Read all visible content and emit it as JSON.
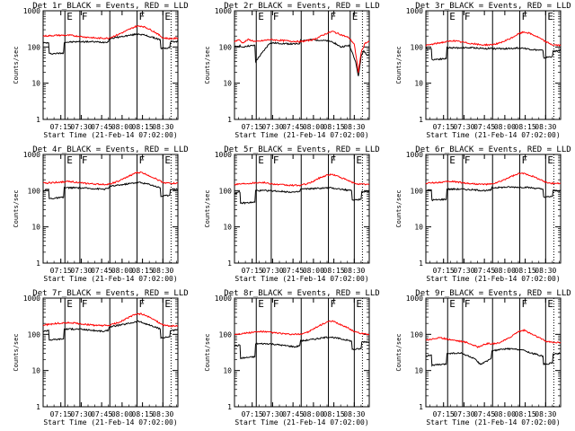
{
  "page": {
    "background": "#ffffff"
  },
  "colors": {
    "events": "#000000",
    "lld": "#ff0000",
    "axis": "#000000"
  },
  "shared": {
    "ylabel": "Counts/sec",
    "xlabel": "Start Time (21-Feb-14 07:02:00)",
    "x_tick_labels": [
      "07:15",
      "07:30",
      "07:45",
      "08:00",
      "08:15",
      "08:30"
    ],
    "y_tick_labels": [
      "1",
      "10",
      "100",
      "1000"
    ]
  },
  "chart_data": [
    {
      "type": "line",
      "title": "Det 1r_BLACK = Events, RED = LLD",
      "xlabel": "Start Time (21-Feb-14 07:02:00)",
      "ylabel": "Counts/sec",
      "x_unit": "minutes since 07:02:00",
      "xlim": [
        0,
        99
      ],
      "ylim": [
        1,
        1000
      ],
      "y_scale": "log",
      "markers": [
        {
          "x": 16,
          "label": "E"
        },
        {
          "x": 27,
          "label": "F"
        },
        {
          "x": 49,
          "label": ""
        },
        {
          "x": 69,
          "label": "F"
        },
        {
          "x": 88,
          "label": "E"
        },
        {
          "x": 94,
          "label": ""
        }
      ],
      "series": [
        {
          "name": "Events",
          "color": "#000000",
          "x": [
            0,
            4,
            4.5,
            15,
            15.5,
            26,
            26.5,
            35,
            45,
            48,
            48.5,
            60,
            70,
            75,
            86,
            86.5,
            93,
            93.5,
            99
          ],
          "y": [
            130,
            130,
            65,
            68,
            135,
            140,
            140,
            140,
            135,
            140,
            170,
            200,
            230,
            210,
            160,
            90,
            95,
            140,
            140
          ]
        },
        {
          "name": "LLD",
          "color": "#ff0000",
          "x": [
            0,
            10,
            20,
            30,
            40,
            48,
            55,
            62,
            68,
            72,
            76,
            82,
            88,
            93,
            99
          ],
          "y": [
            200,
            210,
            210,
            190,
            175,
            175,
            220,
            290,
            370,
            380,
            340,
            260,
            180,
            170,
            175
          ]
        }
      ]
    },
    {
      "type": "line",
      "title": "Det 2r_BLACK = Events, RED = LLD",
      "xlabel": "Start Time (21-Feb-14 07:02:00)",
      "ylabel": "Counts/sec",
      "x_unit": "minutes since 07:02:00",
      "xlim": [
        0,
        99
      ],
      "ylim": [
        1,
        1000
      ],
      "y_scale": "log",
      "markers": [
        {
          "x": 16,
          "label": "E"
        },
        {
          "x": 27,
          "label": "F"
        },
        {
          "x": 49,
          "label": ""
        },
        {
          "x": 69,
          "label": "F"
        },
        {
          "x": 85,
          "label": "E"
        },
        {
          "x": 94,
          "label": ""
        }
      ],
      "series": [
        {
          "name": "Events",
          "color": "#000000",
          "x": [
            0,
            4,
            6,
            8,
            15,
            15.5,
            26,
            35,
            45,
            48,
            48.5,
            58,
            66,
            72,
            78,
            84,
            86,
            89,
            91,
            93,
            95,
            97,
            99
          ],
          "y": [
            100,
            110,
            95,
            105,
            110,
            40,
            130,
            125,
            120,
            125,
            150,
            160,
            150,
            140,
            100,
            110,
            80,
            40,
            15,
            55,
            80,
            60,
            60
          ]
        },
        {
          "name": "LLD",
          "color": "#ff0000",
          "x": [
            0,
            3,
            6,
            10,
            16,
            26,
            36,
            48,
            58,
            68,
            72,
            78,
            84,
            88,
            91,
            93,
            96,
            99
          ],
          "y": [
            140,
            160,
            130,
            160,
            140,
            160,
            150,
            140,
            160,
            240,
            270,
            220,
            180,
            120,
            20,
            70,
            130,
            140
          ]
        }
      ]
    },
    {
      "type": "line",
      "title": "Det 3r_BLACK = Events, RED = LLD",
      "xlabel": "Start Time (21-Feb-14 07:02:00)",
      "ylabel": "Counts/sec",
      "x_unit": "minutes since 07:02:00",
      "xlim": [
        0,
        99
      ],
      "ylim": [
        1,
        1000
      ],
      "y_scale": "log",
      "markers": [
        {
          "x": 16,
          "label": "E"
        },
        {
          "x": 27,
          "label": "F"
        },
        {
          "x": 49,
          "label": ""
        },
        {
          "x": 69,
          "label": "F"
        },
        {
          "x": 88,
          "label": "E"
        },
        {
          "x": 94,
          "label": ""
        }
      ],
      "series": [
        {
          "name": "Events",
          "color": "#000000",
          "x": [
            0,
            4,
            4.5,
            15,
            15.5,
            26,
            35,
            45,
            48,
            48.5,
            60,
            70,
            78,
            86,
            86.5,
            93,
            93.5,
            99
          ],
          "y": [
            90,
            90,
            45,
            48,
            95,
            95,
            95,
            90,
            95,
            90,
            90,
            95,
            85,
            80,
            50,
            55,
            75,
            80
          ]
        },
        {
          "name": "LLD",
          "color": "#ff0000",
          "x": [
            0,
            10,
            20,
            30,
            40,
            48,
            55,
            62,
            68,
            72,
            76,
            82,
            88,
            93,
            99
          ],
          "y": [
            110,
            130,
            150,
            130,
            115,
            115,
            130,
            170,
            230,
            260,
            240,
            190,
            140,
            115,
            110
          ]
        }
      ]
    },
    {
      "type": "line",
      "title": "Det 4r_BLACK = Events, RED = LLD",
      "xlabel": "Start Time (21-Feb-14 07:02:00)",
      "ylabel": "Counts/sec",
      "x_unit": "minutes since 07:02:00",
      "xlim": [
        0,
        99
      ],
      "ylim": [
        1,
        1000
      ],
      "y_scale": "log",
      "markers": [
        {
          "x": 16,
          "label": "E"
        },
        {
          "x": 27,
          "label": "F"
        },
        {
          "x": 49,
          "label": ""
        },
        {
          "x": 69,
          "label": "F"
        },
        {
          "x": 88,
          "label": "E"
        },
        {
          "x": 94,
          "label": ""
        }
      ],
      "series": [
        {
          "name": "Events",
          "color": "#000000",
          "x": [
            0,
            4,
            4.5,
            15,
            15.5,
            26,
            35,
            45,
            48,
            48.5,
            60,
            70,
            78,
            86,
            86.5,
            93,
            93.5,
            99
          ],
          "y": [
            100,
            110,
            60,
            65,
            120,
            120,
            115,
            110,
            115,
            130,
            150,
            170,
            150,
            120,
            70,
            75,
            110,
            110
          ]
        },
        {
          "name": "LLD",
          "color": "#ff0000",
          "x": [
            0,
            10,
            20,
            30,
            40,
            48,
            55,
            62,
            68,
            72,
            76,
            82,
            88,
            93,
            99
          ],
          "y": [
            160,
            170,
            180,
            160,
            150,
            150,
            180,
            240,
            310,
            320,
            280,
            220,
            170,
            160,
            160
          ]
        }
      ]
    },
    {
      "type": "line",
      "title": "Det 5r_BLACK = Events, RED = LLD",
      "xlabel": "Start Time (21-Feb-14 07:02:00)",
      "ylabel": "Counts/sec",
      "x_unit": "minutes since 07:02:00",
      "xlim": [
        0,
        99
      ],
      "ylim": [
        1,
        1000
      ],
      "y_scale": "log",
      "markers": [
        {
          "x": 16,
          "label": "E"
        },
        {
          "x": 27,
          "label": "F"
        },
        {
          "x": 49,
          "label": ""
        },
        {
          "x": 69,
          "label": "F"
        },
        {
          "x": 88,
          "label": "E"
        },
        {
          "x": 94,
          "label": ""
        }
      ],
      "series": [
        {
          "name": "Events",
          "color": "#000000",
          "x": [
            0,
            4,
            4.5,
            15,
            15.5,
            26,
            35,
            45,
            48,
            48.5,
            60,
            70,
            78,
            86,
            86.5,
            93,
            93.5,
            99
          ],
          "y": [
            85,
            90,
            45,
            48,
            100,
            100,
            95,
            90,
            95,
            110,
            115,
            120,
            110,
            100,
            55,
            58,
            95,
            95
          ]
        },
        {
          "name": "LLD",
          "color": "#ff0000",
          "x": [
            0,
            10,
            20,
            30,
            40,
            48,
            55,
            62,
            68,
            72,
            76,
            82,
            88,
            93,
            99
          ],
          "y": [
            150,
            160,
            170,
            150,
            140,
            140,
            160,
            220,
            270,
            280,
            250,
            200,
            160,
            150,
            150
          ]
        }
      ]
    },
    {
      "type": "line",
      "title": "Det 6r_BLACK = Events, RED = LLD",
      "xlabel": "Start Time (21-Feb-14 07:02:00)",
      "ylabel": "Counts/sec",
      "x_unit": "minutes since 07:02:00",
      "xlim": [
        0,
        99
      ],
      "ylim": [
        1,
        1000
      ],
      "y_scale": "log",
      "markers": [
        {
          "x": 16,
          "label": "E"
        },
        {
          "x": 27,
          "label": "F"
        },
        {
          "x": 49,
          "label": ""
        },
        {
          "x": 69,
          "label": "F"
        },
        {
          "x": 88,
          "label": "E"
        },
        {
          "x": 94,
          "label": ""
        }
      ],
      "series": [
        {
          "name": "Events",
          "color": "#000000",
          "x": [
            0,
            4,
            4.5,
            15,
            15.5,
            26,
            35,
            45,
            48,
            48.5,
            60,
            70,
            78,
            86,
            86.5,
            93,
            93.5,
            99
          ],
          "y": [
            100,
            105,
            55,
            58,
            110,
            110,
            105,
            100,
            105,
            120,
            125,
            125,
            120,
            110,
            65,
            70,
            100,
            100
          ]
        },
        {
          "name": "LLD",
          "color": "#ff0000",
          "x": [
            0,
            10,
            20,
            30,
            40,
            48,
            55,
            62,
            68,
            72,
            76,
            82,
            88,
            93,
            99
          ],
          "y": [
            160,
            170,
            180,
            160,
            150,
            150,
            180,
            240,
            290,
            300,
            270,
            220,
            170,
            160,
            160
          ]
        }
      ]
    },
    {
      "type": "line",
      "title": "Det 7r_BLACK = Events, RED = LLD",
      "xlabel": "Start Time (21-Feb-14 07:02:00)",
      "ylabel": "Counts/sec",
      "x_unit": "minutes since 07:02:00",
      "xlim": [
        0,
        99
      ],
      "ylim": [
        1,
        1000
      ],
      "y_scale": "log",
      "markers": [
        {
          "x": 16,
          "label": "E"
        },
        {
          "x": 27,
          "label": "F"
        },
        {
          "x": 49,
          "label": ""
        },
        {
          "x": 69,
          "label": "F"
        },
        {
          "x": 88,
          "label": "E"
        },
        {
          "x": 94,
          "label": ""
        }
      ],
      "series": [
        {
          "name": "Events",
          "color": "#000000",
          "x": [
            0,
            4,
            4.5,
            15,
            15.5,
            26,
            35,
            45,
            48,
            48.5,
            60,
            70,
            78,
            86,
            86.5,
            93,
            93.5,
            99
          ],
          "y": [
            120,
            130,
            70,
            75,
            140,
            140,
            130,
            120,
            130,
            160,
            190,
            230,
            180,
            140,
            80,
            85,
            130,
            130
          ]
        },
        {
          "name": "LLD",
          "color": "#ff0000",
          "x": [
            0,
            10,
            20,
            30,
            40,
            48,
            55,
            62,
            68,
            72,
            76,
            82,
            88,
            93,
            99
          ],
          "y": [
            180,
            200,
            210,
            190,
            175,
            175,
            210,
            280,
            360,
            370,
            320,
            250,
            180,
            170,
            170
          ]
        }
      ]
    },
    {
      "type": "line",
      "title": "Det 8r_BLACK = Events, RED = LLD",
      "xlabel": "Start Time (21-Feb-14 07:02:00)",
      "ylabel": "Counts/sec",
      "x_unit": "minutes since 07:02:00",
      "xlim": [
        0,
        99
      ],
      "ylim": [
        1,
        1000
      ],
      "y_scale": "log",
      "markers": [
        {
          "x": 16,
          "label": "E"
        },
        {
          "x": 27,
          "label": "F"
        },
        {
          "x": 49,
          "label": ""
        },
        {
          "x": 69,
          "label": "F"
        },
        {
          "x": 88,
          "label": "E"
        },
        {
          "x": 94,
          "label": ""
        }
      ],
      "series": [
        {
          "name": "Events",
          "color": "#000000",
          "x": [
            0,
            4,
            4.5,
            15,
            15.5,
            26,
            35,
            45,
            48,
            48.5,
            60,
            70,
            78,
            86,
            86.5,
            93,
            93.5,
            99
          ],
          "y": [
            48,
            50,
            22,
            24,
            55,
            55,
            50,
            45,
            50,
            65,
            75,
            85,
            75,
            65,
            38,
            40,
            62,
            62
          ]
        },
        {
          "name": "LLD",
          "color": "#ff0000",
          "x": [
            0,
            10,
            20,
            30,
            40,
            48,
            55,
            62,
            68,
            72,
            76,
            82,
            88,
            93,
            99
          ],
          "y": [
            100,
            110,
            120,
            110,
            100,
            100,
            120,
            170,
            220,
            230,
            200,
            160,
            120,
            105,
            100
          ]
        }
      ]
    },
    {
      "type": "line",
      "title": "Det 9r_BLACK = Events, RED = LLD",
      "xlabel": "Start Time (21-Feb-14 07:02:00)",
      "ylabel": "Counts/sec",
      "x_unit": "minutes since 07:02:00",
      "xlim": [
        0,
        99
      ],
      "ylim": [
        1,
        1000
      ],
      "y_scale": "log",
      "markers": [
        {
          "x": 16,
          "label": "E"
        },
        {
          "x": 27,
          "label": "F"
        },
        {
          "x": 49,
          "label": ""
        },
        {
          "x": 69,
          "label": "F"
        },
        {
          "x": 88,
          "label": "E"
        },
        {
          "x": 94,
          "label": ""
        }
      ],
      "series": [
        {
          "name": "Events",
          "color": "#000000",
          "x": [
            0,
            4,
            4.5,
            15,
            15.5,
            26,
            35,
            40,
            45,
            48,
            48.5,
            60,
            70,
            78,
            86,
            86.5,
            93,
            93.5,
            99
          ],
          "y": [
            25,
            27,
            14,
            15,
            30,
            30,
            22,
            15,
            18,
            22,
            35,
            40,
            38,
            30,
            25,
            15,
            16,
            28,
            30
          ]
        },
        {
          "name": "LLD",
          "color": "#ff0000",
          "x": [
            0,
            10,
            20,
            30,
            38,
            45,
            52,
            60,
            68,
            72,
            76,
            82,
            88,
            93,
            99
          ],
          "y": [
            70,
            80,
            70,
            60,
            45,
            55,
            55,
            75,
            120,
            130,
            110,
            85,
            65,
            60,
            60
          ]
        }
      ]
    }
  ]
}
